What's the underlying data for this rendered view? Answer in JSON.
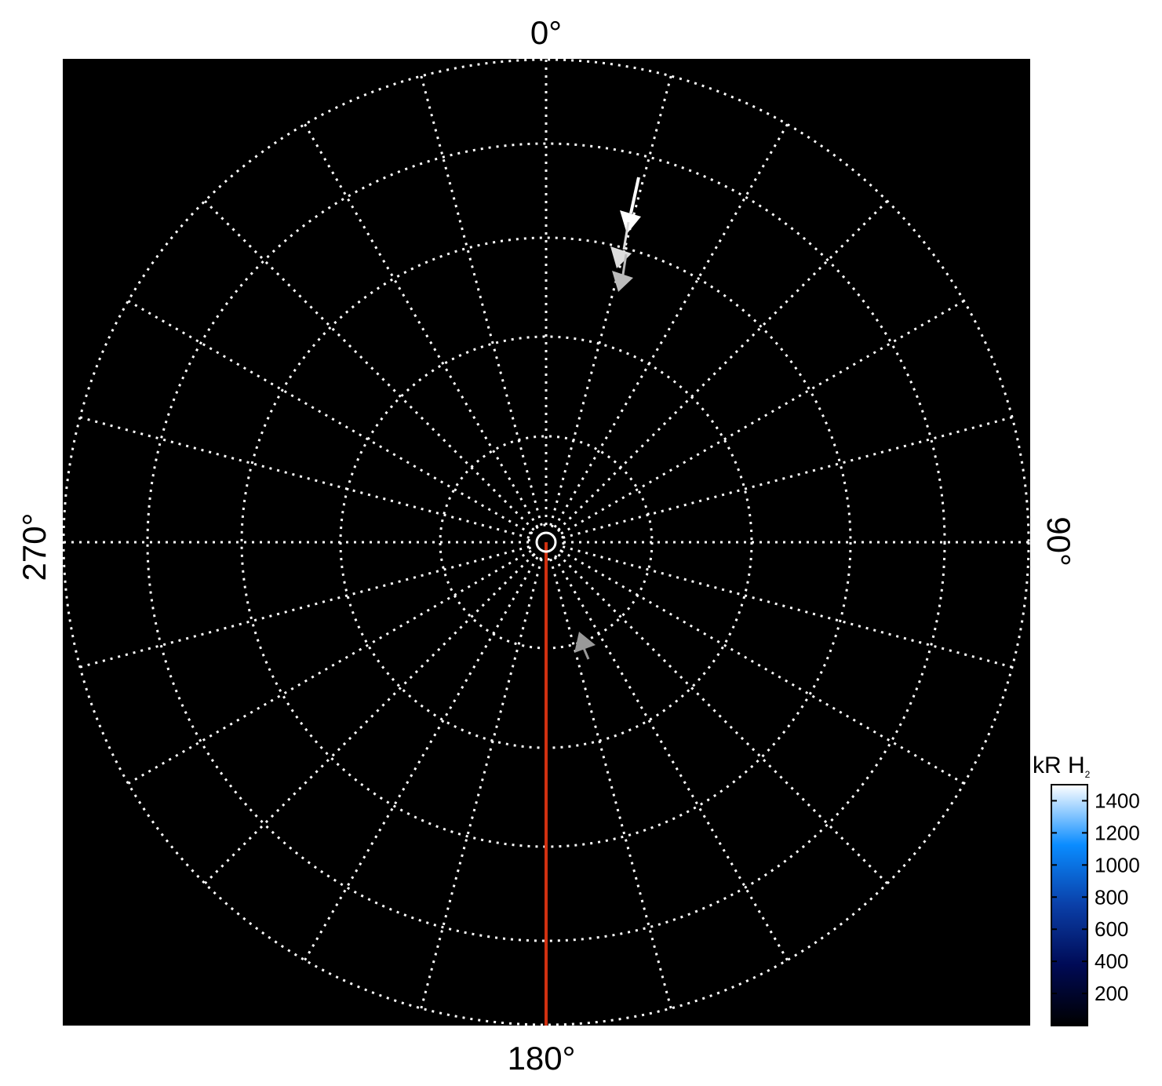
{
  "chart_data": {
    "type": "polar",
    "angle_labels": {
      "top": "0°",
      "right": "90°",
      "bottom": "180°",
      "left": "270°"
    },
    "spoke_step_deg": 15,
    "grid": "dotted white",
    "background": "#000000",
    "reference_line": {
      "angle_deg": 180,
      "color": "#d03010"
    },
    "colorbar": {
      "label": "kR H",
      "label_subscript": "2",
      "range": [
        0,
        1500
      ],
      "ticks": [
        "200",
        "400",
        "600",
        "800",
        "1000",
        "1200",
        "1400"
      ],
      "colormap": [
        "#000000",
        "#000a55",
        "#0a3fa8",
        "#0a8cff",
        "#ffffff"
      ],
      "placement": "bottom-right"
    }
  }
}
